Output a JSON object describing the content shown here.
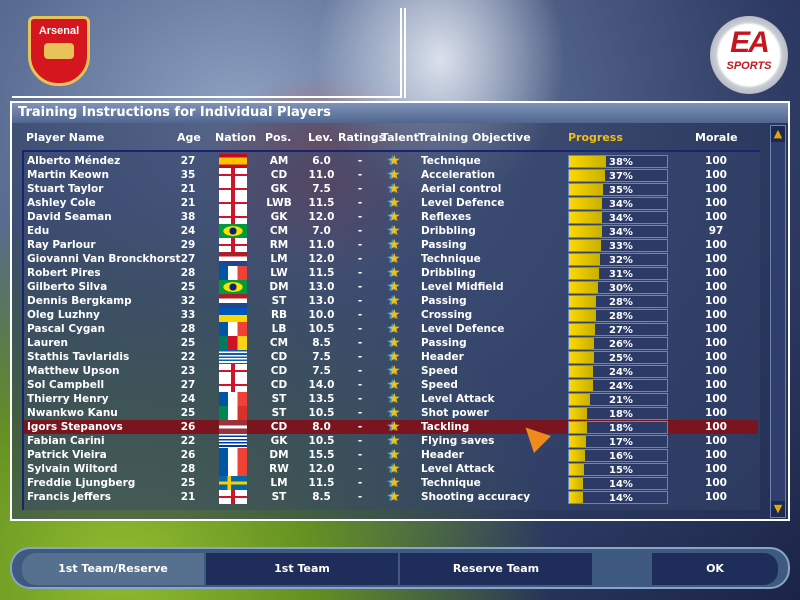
{
  "club": {
    "name": "Arsenal"
  },
  "publisher": {
    "logo_text": "EA",
    "logo_sub": "SPORTS"
  },
  "panel_title": "Training Instructions for Individual Players",
  "columns": {
    "name": "Player Name",
    "age": "Age",
    "nation": "Nation",
    "pos": "Pos.",
    "lev": "Lev.",
    "ratings": "Ratings",
    "talent": "Talent",
    "objective": "Training Objective",
    "progress": "Progress",
    "morale": "Morale"
  },
  "colors": {
    "progress_header": "#f2c010",
    "selected_row": "#7a1520",
    "bar_fill": "#ffd800"
  },
  "players": [
    {
      "name": "Alberto Méndez",
      "age": "27",
      "nation": "spain",
      "pos": "AM",
      "lev": "6.0",
      "ratings": "-",
      "objective": "Technique",
      "progress": 38,
      "progress_label": "38%",
      "morale": "100"
    },
    {
      "name": "Martin Keown",
      "age": "35",
      "nation": "england",
      "pos": "CD",
      "lev": "11.0",
      "ratings": "-",
      "objective": "Acceleration",
      "progress": 37,
      "progress_label": "37%",
      "morale": "100"
    },
    {
      "name": "Stuart Taylor",
      "age": "21",
      "nation": "england",
      "pos": "GK",
      "lev": "7.5",
      "ratings": "-",
      "objective": "Aerial control",
      "progress": 35,
      "progress_label": "35%",
      "morale": "100"
    },
    {
      "name": "Ashley Cole",
      "age": "21",
      "nation": "england",
      "pos": "LWB",
      "lev": "11.5",
      "ratings": "-",
      "objective": "Level Defence",
      "progress": 34,
      "progress_label": "34%",
      "morale": "100"
    },
    {
      "name": "David Seaman",
      "age": "38",
      "nation": "england",
      "pos": "GK",
      "lev": "12.0",
      "ratings": "-",
      "objective": "Reflexes",
      "progress": 34,
      "progress_label": "34%",
      "morale": "100"
    },
    {
      "name": "Edu",
      "age": "24",
      "nation": "brazil",
      "pos": "CM",
      "lev": "7.0",
      "ratings": "-",
      "objective": "Dribbling",
      "progress": 34,
      "progress_label": "34%",
      "morale": "97"
    },
    {
      "name": "Ray Parlour",
      "age": "29",
      "nation": "england",
      "pos": "RM",
      "lev": "11.0",
      "ratings": "-",
      "objective": "Passing",
      "progress": 33,
      "progress_label": "33%",
      "morale": "100"
    },
    {
      "name": "Giovanni Van Bronckhorst",
      "age": "27",
      "nation": "netherlands",
      "pos": "LM",
      "lev": "12.0",
      "ratings": "-",
      "objective": "Technique",
      "progress": 32,
      "progress_label": "32%",
      "morale": "100"
    },
    {
      "name": "Robert Pires",
      "age": "28",
      "nation": "france",
      "pos": "LW",
      "lev": "11.5",
      "ratings": "-",
      "objective": "Dribbling",
      "progress": 31,
      "progress_label": "31%",
      "morale": "100"
    },
    {
      "name": "Gilberto Silva",
      "age": "25",
      "nation": "brazil",
      "pos": "DM",
      "lev": "13.0",
      "ratings": "-",
      "objective": "Level Midfield",
      "progress": 30,
      "progress_label": "30%",
      "morale": "100"
    },
    {
      "name": "Dennis Bergkamp",
      "age": "32",
      "nation": "netherlands",
      "pos": "ST",
      "lev": "13.0",
      "ratings": "-",
      "objective": "Passing",
      "progress": 28,
      "progress_label": "28%",
      "morale": "100"
    },
    {
      "name": "Oleg Luzhny",
      "age": "33",
      "nation": "ukraine",
      "pos": "RB",
      "lev": "10.0",
      "ratings": "-",
      "objective": "Crossing",
      "progress": 28,
      "progress_label": "28%",
      "morale": "100"
    },
    {
      "name": "Pascal Cygan",
      "age": "28",
      "nation": "france",
      "pos": "LB",
      "lev": "10.5",
      "ratings": "-",
      "objective": "Level Defence",
      "progress": 27,
      "progress_label": "27%",
      "morale": "100"
    },
    {
      "name": "Lauren",
      "age": "25",
      "nation": "cameroon",
      "pos": "CM",
      "lev": "8.5",
      "ratings": "-",
      "objective": "Passing",
      "progress": 26,
      "progress_label": "26%",
      "morale": "100"
    },
    {
      "name": "Stathis Tavlaridis",
      "age": "22",
      "nation": "greece",
      "pos": "CD",
      "lev": "7.5",
      "ratings": "-",
      "objective": "Header",
      "progress": 25,
      "progress_label": "25%",
      "morale": "100"
    },
    {
      "name": "Matthew Upson",
      "age": "23",
      "nation": "england",
      "pos": "CD",
      "lev": "7.5",
      "ratings": "-",
      "objective": "Speed",
      "progress": 24,
      "progress_label": "24%",
      "morale": "100"
    },
    {
      "name": "Sol Campbell",
      "age": "27",
      "nation": "england",
      "pos": "CD",
      "lev": "14.0",
      "ratings": "-",
      "objective": "Speed",
      "progress": 24,
      "progress_label": "24%",
      "morale": "100"
    },
    {
      "name": "Thierry Henry",
      "age": "24",
      "nation": "france",
      "pos": "ST",
      "lev": "13.5",
      "ratings": "-",
      "objective": "Level Attack",
      "progress": 21,
      "progress_label": "21%",
      "morale": "100"
    },
    {
      "name": "Nwankwo Kanu",
      "age": "25",
      "nation": "nigeria",
      "pos": "ST",
      "lev": "10.5",
      "ratings": "-",
      "objective": "Shot power",
      "progress": 18,
      "progress_label": "18%",
      "morale": "100"
    },
    {
      "name": "Igors Stepanovs",
      "age": "26",
      "nation": "latvia",
      "pos": "CD",
      "lev": "8.0",
      "ratings": "-",
      "objective": "Tackling",
      "progress": 18,
      "progress_label": "18%",
      "morale": "100",
      "selected": true
    },
    {
      "name": "Fabian Carini",
      "age": "22",
      "nation": "uruguay",
      "pos": "GK",
      "lev": "10.5",
      "ratings": "-",
      "objective": "Flying saves",
      "progress": 17,
      "progress_label": "17%",
      "morale": "100"
    },
    {
      "name": "Patrick Vieira",
      "age": "26",
      "nation": "france",
      "pos": "DM",
      "lev": "15.5",
      "ratings": "-",
      "objective": "Header",
      "progress": 16,
      "progress_label": "16%",
      "morale": "100"
    },
    {
      "name": "Sylvain Wiltord",
      "age": "28",
      "nation": "france",
      "pos": "RW",
      "lev": "12.0",
      "ratings": "-",
      "objective": "Level Attack",
      "progress": 15,
      "progress_label": "15%",
      "morale": "100"
    },
    {
      "name": "Freddie Ljungberg",
      "age": "25",
      "nation": "sweden",
      "pos": "LM",
      "lev": "11.5",
      "ratings": "-",
      "objective": "Technique",
      "progress": 14,
      "progress_label": "14%",
      "morale": "100"
    },
    {
      "name": "Francis Jeffers",
      "age": "21",
      "nation": "england",
      "pos": "ST",
      "lev": "8.5",
      "ratings": "-",
      "objective": "Shooting accuracy",
      "progress": 14,
      "progress_label": "14%",
      "morale": "100"
    }
  ],
  "buttons": {
    "first_reserve": "1st Team/Reserve",
    "first": "1st Team",
    "reserve": "Reserve Team",
    "ok": "OK"
  },
  "icons": {
    "talent": "star-icon",
    "scroll_up": "arrow-up-icon",
    "scroll_down": "arrow-down-icon"
  }
}
